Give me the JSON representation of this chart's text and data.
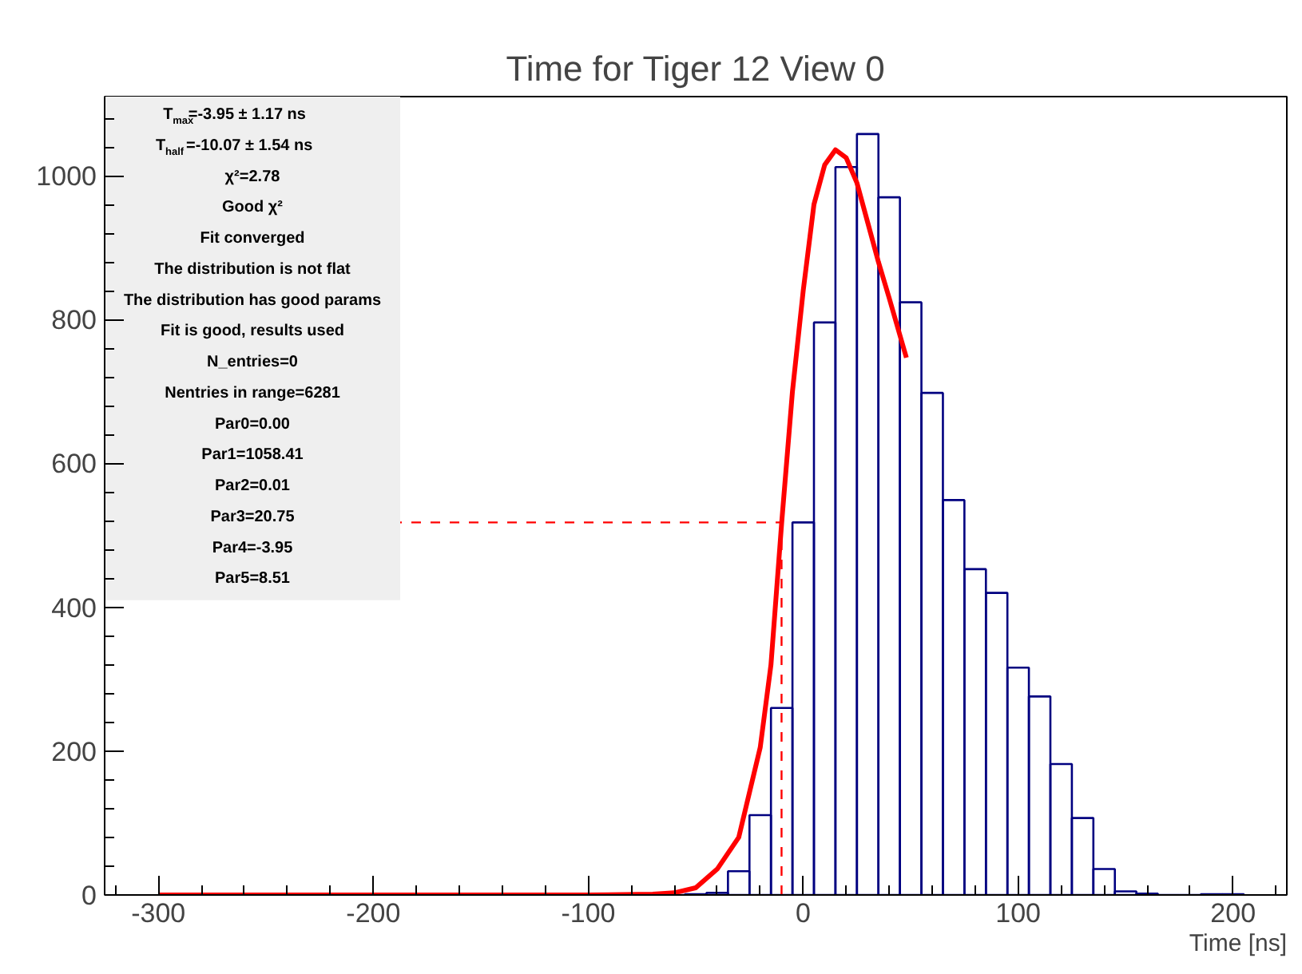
{
  "chart_data": {
    "type": "histogram",
    "title": "Time for Tiger 12 View 0",
    "xlabel": "Time [ns]",
    "bins": [
      -295,
      -285,
      -275,
      -265,
      -255,
      -245,
      -235,
      -225,
      -215,
      -205,
      -195,
      -185,
      -175,
      -165,
      -155,
      -145,
      -135,
      -125,
      -115,
      -105,
      -95,
      -85,
      -75,
      -65,
      -55,
      -45,
      -35,
      -25,
      -15,
      -5,
      5,
      15,
      25,
      35,
      45,
      55,
      65,
      75,
      85,
      95,
      105,
      115,
      125,
      135,
      145,
      155,
      165,
      175,
      185,
      195,
      205
    ],
    "series": [
      {
        "color": "#000080",
        "values": [
          0,
          0,
          0,
          0,
          0,
          0,
          0,
          0,
          0,
          2,
          1,
          0,
          0,
          0,
          0,
          0,
          0,
          0,
          0,
          0,
          0,
          0,
          0,
          0,
          1,
          3,
          33,
          111,
          260,
          518,
          796,
          1012,
          1058,
          970,
          824,
          698,
          549,
          453,
          420,
          316,
          276,
          182,
          107,
          36,
          5,
          2,
          0,
          0,
          1,
          1
        ]
      },
      {
        "type": "line",
        "color": "#ff0000",
        "x": [
          -300,
          -100,
          -70,
          -60,
          -50,
          -40,
          -30,
          -20,
          -15,
          -10,
          -5,
          0,
          5,
          10,
          15,
          20,
          25,
          30,
          35,
          40,
          48
        ],
        "values": [
          0,
          0,
          1,
          3,
          10,
          36,
          80,
          205,
          320,
          518,
          700,
          840,
          960,
          1015,
          1036,
          1025,
          990,
          935,
          880,
          830,
          747
        ]
      }
    ],
    "xlim": [
      -325,
      225
    ],
    "ylim": [
      0,
      1110
    ],
    "xticks": [
      -300,
      -200,
      -100,
      0,
      100,
      200
    ],
    "yticks": [
      0,
      200,
      400,
      600,
      800,
      1000
    ],
    "grid": false,
    "ref_lines": [
      {
        "axis": "x",
        "value": -10.07,
        "color": "#ff0000",
        "line_style": "dashed"
      },
      {
        "axis": "y",
        "value": 518,
        "color": "#ff0000",
        "line_style": "dashed"
      }
    ],
    "annotations": [
      "T$_{max}$=-3.95 ± 1.17 ns",
      "T$_{half}$=-10.07 ± 1.54 ns",
      "χ²=2.78",
      "Good χ²",
      "Fit converged",
      "The distribution is not flat",
      "The distribution has good params",
      "Fit is good, results used",
      "N_entries=0",
      "Nentries in range=6281",
      "Par0=0.00",
      "Par1=1058.41",
      "Par2=0.01",
      "Par3=20.75",
      "Par4=-3.95",
      "Par5=8.51"
    ]
  }
}
